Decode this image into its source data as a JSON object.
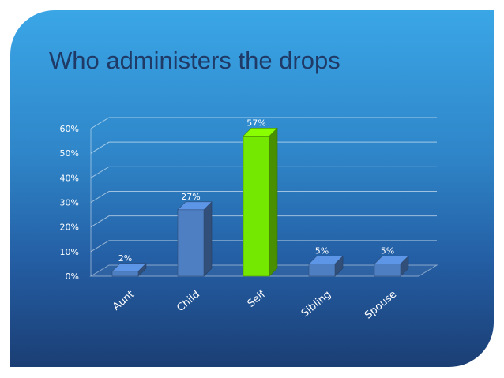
{
  "slide": {
    "title": "Who administers the drops"
  },
  "chart_data": {
    "type": "bar",
    "title": "",
    "categories": [
      "Aunt",
      "Child",
      "Self",
      "Sibling",
      "Spouse"
    ],
    "values": [
      2,
      27,
      57,
      5,
      5
    ],
    "data_labels": [
      "2%",
      "27%",
      "57%",
      "5%",
      "5%"
    ],
    "ylim": [
      0,
      60
    ],
    "y_ticks": [
      "0%",
      "10%",
      "20%",
      "30%",
      "40%",
      "50%",
      "60%"
    ],
    "grid": true,
    "style": "3d",
    "colors": {
      "default": "#4f7fc3",
      "highlight": "#74e800",
      "highlight_category": "Self"
    }
  }
}
